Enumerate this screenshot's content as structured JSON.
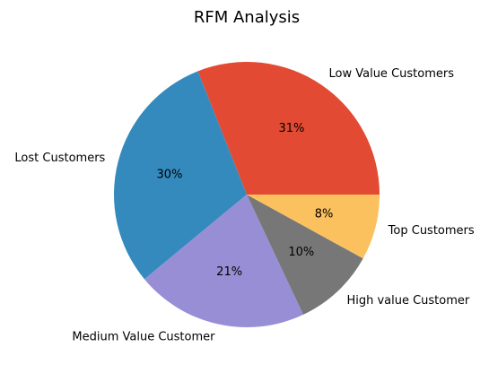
{
  "chart_data": {
    "type": "pie",
    "title": "RFM Analysis",
    "start_angle_deg": 0,
    "direction": "counterclockwise",
    "slices": [
      {
        "label": "Low Value Customers",
        "value": 31,
        "pct_label": "31%",
        "color": "#E24A33"
      },
      {
        "label": "Lost Customers",
        "value": 30,
        "pct_label": "30%",
        "color": "#348ABD"
      },
      {
        "label": "Medium Value Customer",
        "value": 21,
        "pct_label": "21%",
        "color": "#988ED5"
      },
      {
        "label": "High value Customer",
        "value": 10,
        "pct_label": "10%",
        "color": "#777777"
      },
      {
        "label": "Top Customers",
        "value": 8,
        "pct_label": "8%",
        "color": "#FBC15E"
      }
    ]
  }
}
